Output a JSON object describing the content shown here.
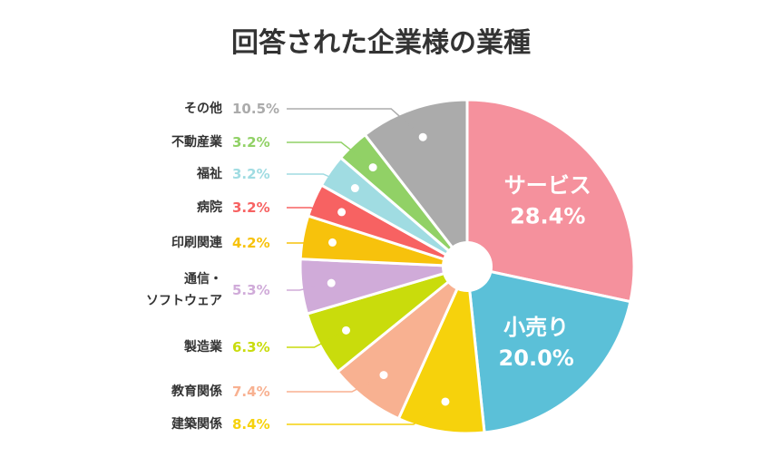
{
  "chart_data": {
    "type": "pie",
    "title": "回答された企業様の業種",
    "categories": [
      "サービス",
      "小売り",
      "建築関係",
      "教育関係",
      "製造業",
      "通信・\nソフトウェア",
      "印刷関連",
      "病院",
      "福祉",
      "不動産業",
      "その他"
    ],
    "values": [
      28.4,
      20.0,
      8.4,
      7.4,
      6.3,
      5.3,
      4.2,
      3.2,
      3.2,
      3.2,
      10.5
    ],
    "value_labels": [
      "28.4%",
      "20.0%",
      "8.4%",
      "7.4%",
      "6.3%",
      "5.3%",
      "4.2%",
      "3.2%",
      "3.2%",
      "3.2%",
      "10.5%"
    ],
    "colors": [
      "#f5919d",
      "#5bc0d8",
      "#f6d20c",
      "#f8b191",
      "#c9dc0c",
      "#d0abd9",
      "#f7c20c",
      "#f76262",
      "#a0dce2",
      "#91d166",
      "#ababab"
    ]
  }
}
